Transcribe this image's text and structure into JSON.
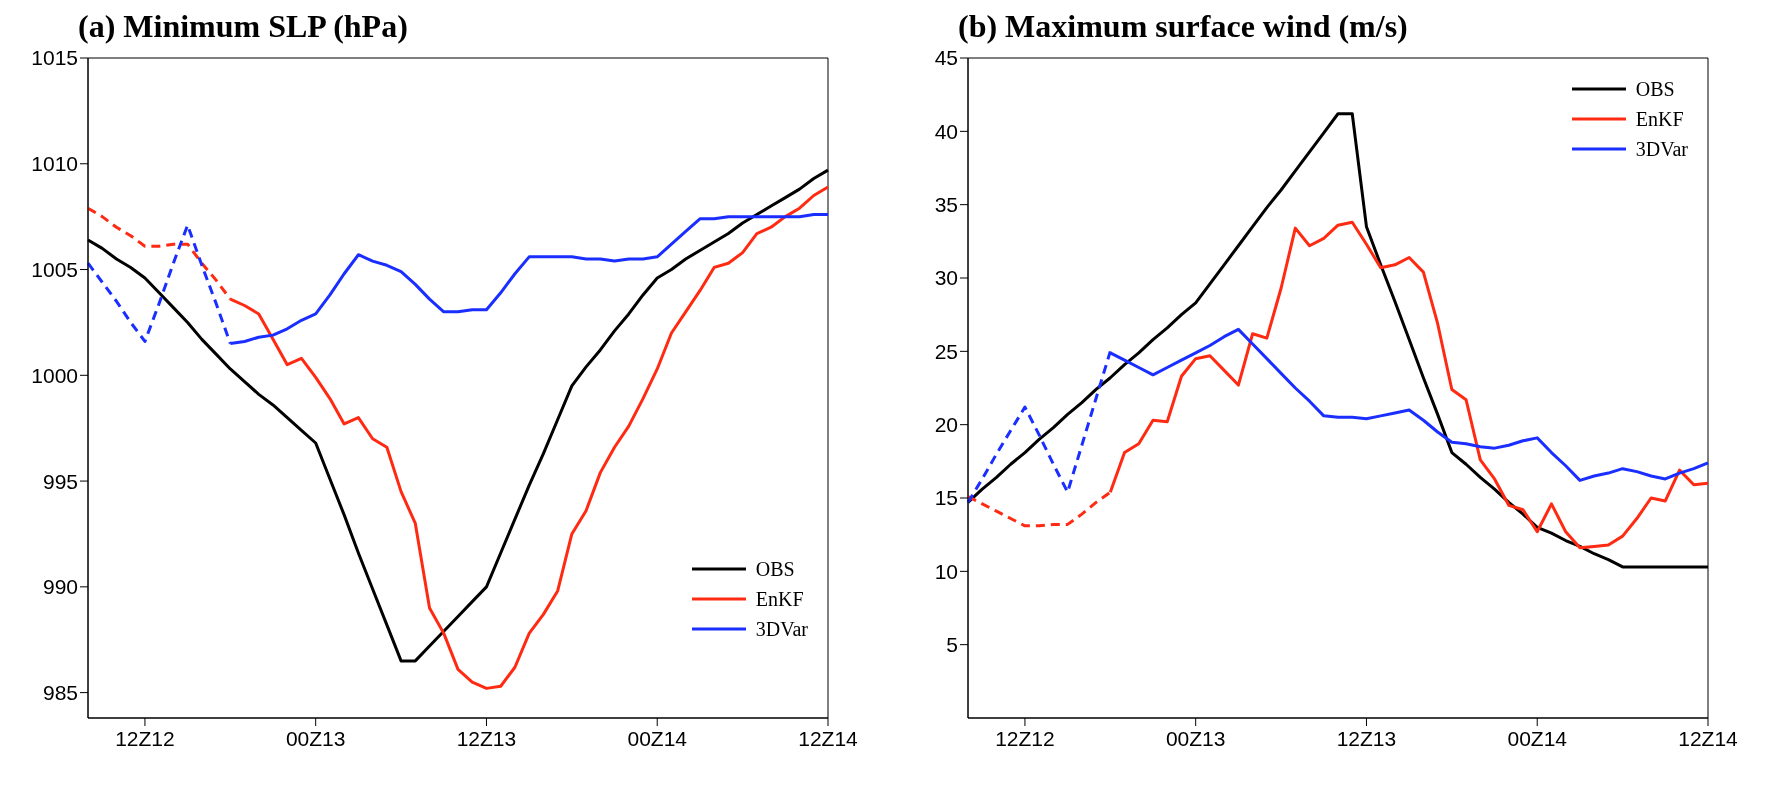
{
  "chart_data": [
    {
      "type": "line",
      "title": "(a) Minimum SLP (hPa)",
      "categories": [
        null,
        null,
        null,
        null,
        "12Z12",
        null,
        null,
        null,
        null,
        null,
        null,
        null,
        null,
        null,
        null,
        null,
        "00Z13",
        null,
        null,
        null,
        null,
        null,
        null,
        null,
        null,
        null,
        null,
        null,
        "12Z13",
        null,
        null,
        null,
        null,
        null,
        null,
        null,
        null,
        null,
        null,
        null,
        "00Z14",
        null,
        null,
        null,
        null,
        null,
        null,
        null,
        null,
        null,
        null,
        null,
        "12Z14"
      ],
      "ylim": [
        983.8,
        1015
      ],
      "yticks": [
        985,
        990,
        995,
        1000,
        1005,
        1010,
        1015
      ],
      "legend": "bottom right",
      "series": [
        {
          "name": "OBS",
          "color": "#000000",
          "line_style": "solid",
          "values": [
            1006.4,
            1006.0,
            1005.5,
            1005.1,
            1004.6,
            1003.9,
            1003.2,
            1002.5,
            1001.7,
            1001.0,
            1000.3,
            999.7,
            999.1,
            998.6,
            998.0,
            997.4,
            996.8,
            995.1,
            993.4,
            991.6,
            989.9,
            988.2,
            986.5,
            986.5,
            987.2,
            987.9,
            988.6,
            989.3,
            990.0,
            991.6,
            993.2,
            994.8,
            996.3,
            997.9,
            999.5,
            1000.4,
            1001.2,
            1002.1,
            1002.9,
            1003.8,
            1004.6,
            1005.0,
            1005.5,
            1005.9,
            1006.3,
            1006.7,
            1007.2,
            1007.6,
            1008.0,
            1008.4,
            1008.8,
            1009.3,
            1009.7
          ]
        },
        {
          "name": "EnKF",
          "color": "#ff2a12",
          "line_style": "solid",
          "values": [
            null,
            null,
            null,
            null,
            null,
            null,
            null,
            null,
            null,
            null,
            1003.6,
            1003.3,
            1002.9,
            1001.7,
            1000.5,
            1000.8,
            999.9,
            998.9,
            997.7,
            998.0,
            997.0,
            996.6,
            994.5,
            993.0,
            989.0,
            987.8,
            986.1,
            985.5,
            985.2,
            985.3,
            986.2,
            987.8,
            988.7,
            989.8,
            992.5,
            993.6,
            995.4,
            996.6,
            997.6,
            998.9,
            1000.3,
            1002.0,
            1003.0,
            1004.0,
            1005.1,
            1005.3,
            1005.8,
            1006.7,
            1007.0,
            1007.5,
            1007.9,
            1008.5,
            1008.9
          ]
        },
        {
          "name": "3DVar",
          "color": "#1a2eff",
          "line_style": "solid",
          "values": [
            null,
            null,
            null,
            null,
            null,
            null,
            null,
            null,
            null,
            null,
            1001.5,
            1001.6,
            1001.8,
            1001.9,
            1002.2,
            1002.6,
            1002.9,
            1003.8,
            1004.8,
            1005.7,
            1005.4,
            1005.2,
            1004.9,
            1004.3,
            1003.6,
            1003.0,
            1003.0,
            1003.1,
            1003.1,
            1003.9,
            1004.8,
            1005.6,
            1005.6,
            1005.6,
            1005.6,
            1005.5,
            1005.5,
            1005.4,
            1005.5,
            1005.5,
            1005.6,
            1006.2,
            1006.8,
            1007.4,
            1007.4,
            1007.5,
            1007.5,
            1007.5,
            1007.5,
            1007.5,
            1007.5,
            1007.6,
            1007.6
          ]
        },
        {
          "color": "#ff2a12",
          "line_style": "dashed",
          "values": [
            1007.9,
            1007.5,
            1007.0,
            1006.6,
            1006.1,
            1006.1,
            1006.2,
            1006.2,
            1005.3,
            1004.5,
            1003.6,
            null,
            null,
            null,
            null,
            null,
            null,
            null,
            null,
            null,
            null,
            null,
            null,
            null,
            null,
            null,
            null,
            null,
            null,
            null,
            null,
            null,
            null,
            null,
            null,
            null,
            null,
            null,
            null,
            null,
            null,
            null,
            null,
            null,
            null,
            null,
            null,
            null,
            null,
            null,
            null,
            null,
            null
          ]
        },
        {
          "color": "#1a2eff",
          "line_style": "dashed",
          "values": [
            1005.3,
            1004.4,
            1003.5,
            1002.5,
            1001.6,
            1003.4,
            1005.3,
            1007.1,
            1005.2,
            1003.4,
            1001.5,
            null,
            null,
            null,
            null,
            null,
            null,
            null,
            null,
            null,
            null,
            null,
            null,
            null,
            null,
            null,
            null,
            null,
            null,
            null,
            null,
            null,
            null,
            null,
            null,
            null,
            null,
            null,
            null,
            null,
            null,
            null,
            null,
            null,
            null,
            null,
            null,
            null,
            null,
            null,
            null,
            null,
            null
          ]
        }
      ]
    },
    {
      "type": "line",
      "title": "(b) Maximum surface wind (m/s)",
      "categories": [
        null,
        null,
        null,
        null,
        "12Z12",
        null,
        null,
        null,
        null,
        null,
        null,
        null,
        null,
        null,
        null,
        null,
        "00Z13",
        null,
        null,
        null,
        null,
        null,
        null,
        null,
        null,
        null,
        null,
        null,
        "12Z13",
        null,
        null,
        null,
        null,
        null,
        null,
        null,
        null,
        null,
        null,
        null,
        "00Z14",
        null,
        null,
        null,
        null,
        null,
        null,
        null,
        null,
        null,
        null,
        null,
        "12Z14"
      ],
      "ylim": [
        0,
        45
      ],
      "yticks": [
        5,
        10,
        15,
        20,
        25,
        30,
        35,
        40,
        45
      ],
      "legend": "top right",
      "series": [
        {
          "name": "OBS",
          "color": "#000000",
          "line_style": "solid",
          "values": [
            14.7,
            15.6,
            16.4,
            17.3,
            18.1,
            19.0,
            19.8,
            20.7,
            21.5,
            22.4,
            23.2,
            24.1,
            24.9,
            25.8,
            26.6,
            27.5,
            28.3,
            29.6,
            30.9,
            32.2,
            33.5,
            34.8,
            36.0,
            37.3,
            38.6,
            39.9,
            41.2,
            41.2,
            33.5,
            30.9,
            28.4,
            25.8,
            23.2,
            20.7,
            18.1,
            17.3,
            16.4,
            15.6,
            14.7,
            13.9,
            13.0,
            12.6,
            12.1,
            11.7,
            11.2,
            10.8,
            10.3,
            10.3,
            10.3,
            10.3,
            10.3,
            10.3,
            10.3
          ]
        },
        {
          "name": "EnKF",
          "color": "#ff2a12",
          "line_style": "solid",
          "values": [
            null,
            null,
            null,
            null,
            null,
            null,
            null,
            null,
            null,
            null,
            15.4,
            18.1,
            18.7,
            20.3,
            20.2,
            23.3,
            24.5,
            24.7,
            23.7,
            22.7,
            26.2,
            25.9,
            29.3,
            33.4,
            32.2,
            32.7,
            33.6,
            33.8,
            32.3,
            30.7,
            30.9,
            31.4,
            30.4,
            26.9,
            22.4,
            21.7,
            17.6,
            16.3,
            14.5,
            14.2,
            12.7,
            14.6,
            12.7,
            11.6,
            11.7,
            11.8,
            12.4,
            13.6,
            15.0,
            14.8,
            16.9,
            15.9,
            16.0
          ]
        },
        {
          "name": "3DVar",
          "color": "#1a2eff",
          "line_style": "solid",
          "values": [
            null,
            null,
            null,
            null,
            null,
            null,
            null,
            null,
            null,
            null,
            24.9,
            24.4,
            23.9,
            23.4,
            23.9,
            24.4,
            24.9,
            25.4,
            26.0,
            26.5,
            25.5,
            24.5,
            23.5,
            22.5,
            21.6,
            20.6,
            20.5,
            20.5,
            20.4,
            20.6,
            20.8,
            21.0,
            20.3,
            19.5,
            18.8,
            18.7,
            18.5,
            18.4,
            18.6,
            18.9,
            19.1,
            18.1,
            17.2,
            16.2,
            16.5,
            16.7,
            17.0,
            16.8,
            16.5,
            16.3,
            16.7,
            17.0,
            17.4
          ]
        },
        {
          "color": "#ff2a12",
          "line_style": "dashed",
          "values": [
            15.1,
            14.6,
            14.1,
            13.6,
            13.1,
            13.1,
            13.2,
            13.2,
            13.9,
            14.7,
            15.4,
            null,
            null,
            null,
            null,
            null,
            null,
            null,
            null,
            null,
            null,
            null,
            null,
            null,
            null,
            null,
            null,
            null,
            null,
            null,
            null,
            null,
            null,
            null,
            null,
            null,
            null,
            null,
            null,
            null,
            null,
            null,
            null,
            null,
            null,
            null,
            null,
            null,
            null,
            null,
            null,
            null,
            null
          ]
        },
        {
          "color": "#1a2eff",
          "line_style": "dashed",
          "values": [
            14.7,
            16.3,
            18.0,
            19.6,
            21.2,
            19.3,
            17.3,
            15.4,
            18.6,
            21.8,
            25.0,
            null,
            null,
            null,
            null,
            null,
            null,
            null,
            null,
            null,
            null,
            null,
            null,
            null,
            null,
            null,
            null,
            null,
            null,
            null,
            null,
            null,
            null,
            null,
            null,
            null,
            null,
            null,
            null,
            null,
            null,
            null,
            null,
            null,
            null,
            null,
            null,
            null,
            null,
            null,
            null,
            null,
            null
          ]
        }
      ]
    }
  ]
}
